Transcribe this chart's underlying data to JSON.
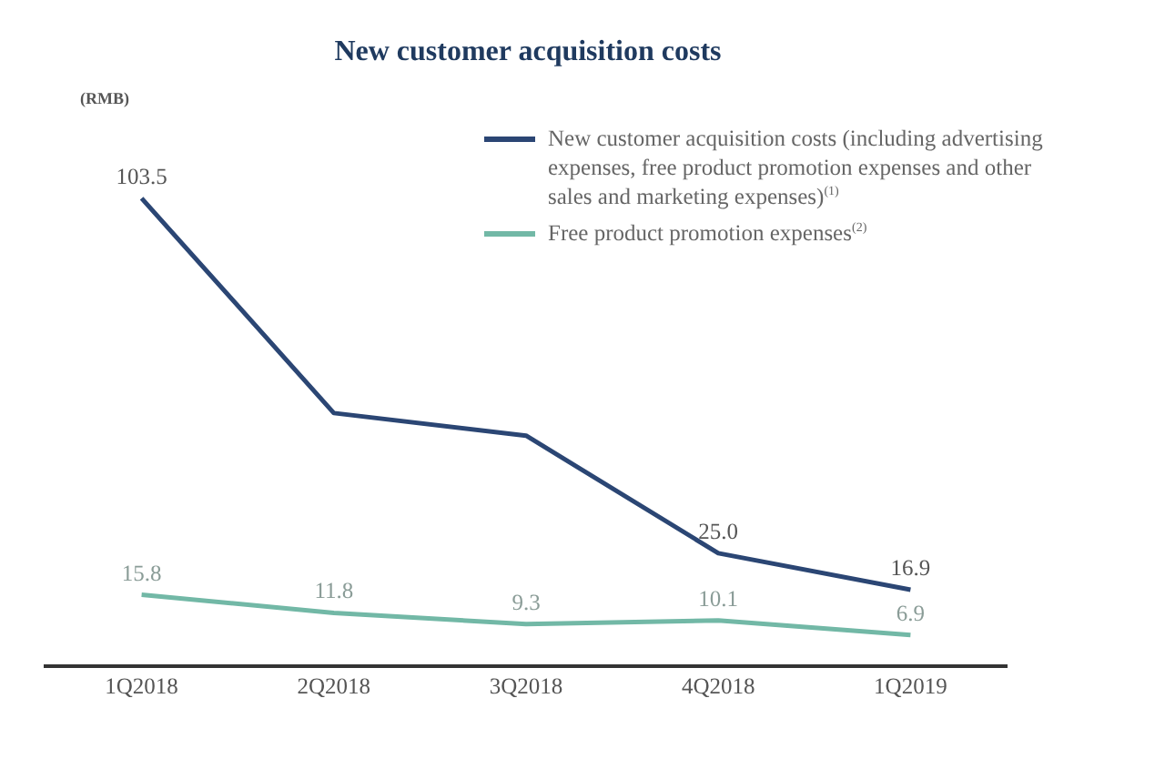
{
  "chart_data": {
    "type": "line",
    "title": "New customer acquisition costs",
    "annotations": [
      "(RMB)"
    ],
    "categories": [
      "1Q2018",
      "2Q2018",
      "3Q2018",
      "4Q2018",
      "1Q2019"
    ],
    "series": [
      {
        "name": "New customer acquisition costs (including advertising expenses, free product promotion expenses and other sales and marketing expenses)$^{(1)}$",
        "color": "#2b4674",
        "values": [
          103.5,
          56,
          51,
          25.0,
          16.9
        ],
        "value_labels": [
          "103.5",
          null,
          null,
          "25.0",
          "16.9"
        ]
      },
      {
        "name": "Free product promotion expenses$^{(2)}$",
        "color": "#72b8a6",
        "values": [
          15.8,
          11.8,
          9.3,
          10.1,
          6.9
        ],
        "value_labels": [
          "15.8",
          "11.8",
          "9.3",
          "10.1",
          "6.9"
        ]
      }
    ],
    "legend": "top right",
    "marker": "none",
    "grid": false,
    "tick_labels": "x"
  }
}
